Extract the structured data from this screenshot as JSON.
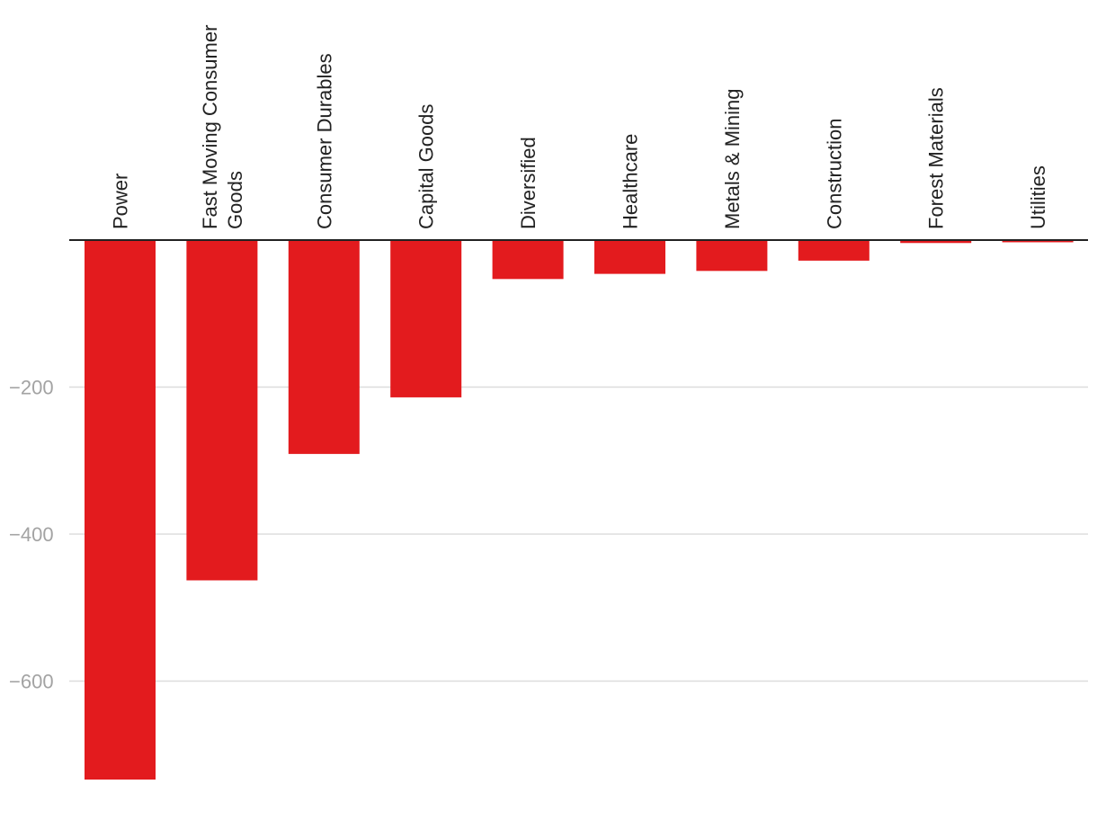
{
  "chart_data": {
    "type": "bar",
    "orientation": "vertical",
    "title": "",
    "xlabel": "",
    "ylabel": "",
    "categories": [
      [
        "Power"
      ],
      [
        "Fast Moving Consumer",
        "Goods"
      ],
      [
        "Consumer Durables"
      ],
      [
        "Capital Goods"
      ],
      [
        "Diversified"
      ],
      [
        "Healthcare"
      ],
      [
        "Metals & Mining"
      ],
      [
        "Construction"
      ],
      [
        "Forest Materials"
      ],
      [
        "Utilities"
      ]
    ],
    "values": [
      -734,
      -463,
      -291,
      -214,
      -53,
      -46,
      -42,
      -28,
      -4,
      -3
    ],
    "ylim": [
      -740,
      0
    ],
    "yticks": [
      {
        "value": -200,
        "label": "−200"
      },
      {
        "value": -400,
        "label": "−400"
      },
      {
        "value": -600,
        "label": "−600"
      }
    ],
    "grid": true,
    "legend": "none",
    "category_label_position": "top-rotated",
    "bar_color": "#e31b1e"
  }
}
